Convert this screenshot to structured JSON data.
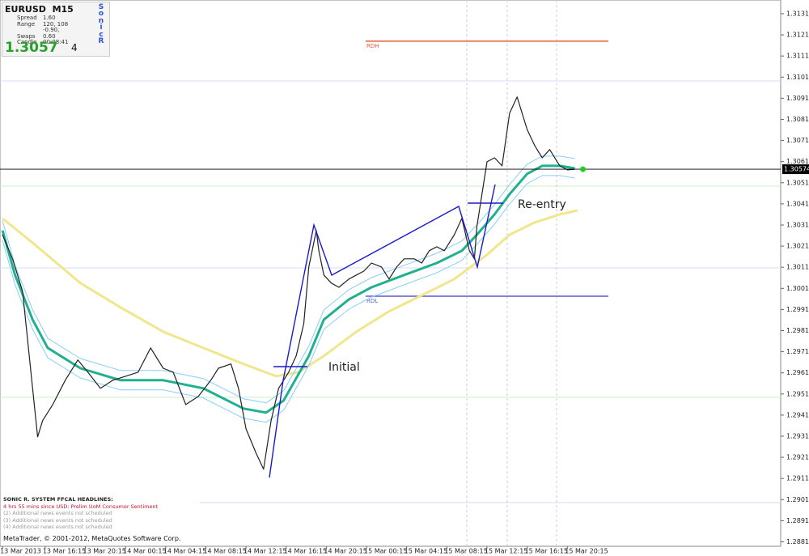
{
  "chart_data": {
    "type": "line",
    "annotations": [
      "Initial",
      "Re-entry"
    ],
    "xlim": [
      -1,
      310
    ],
    "ylim": [
      1.28789,
      1.31375
    ],
    "xticks": [
      {
        "value": 0,
        "label": "13 Mar 2013"
      },
      {
        "value": 17,
        "label": "13 Mar 16:15"
      },
      {
        "value": 33,
        "label": "13 Mar 20:15"
      },
      {
        "value": 49,
        "label": "14 Mar 00:15"
      },
      {
        "value": 65,
        "label": "14 Mar 04:15"
      },
      {
        "value": 81,
        "label": "14 Mar 08:15"
      },
      {
        "value": 97,
        "label": "14 Mar 12:15"
      },
      {
        "value": 113,
        "label": "14 Mar 16:15"
      },
      {
        "value": 129,
        "label": "14 Mar 20:15"
      },
      {
        "value": 145,
        "label": "15 Mar 00:15"
      },
      {
        "value": 161,
        "label": "15 Mar 04:15"
      },
      {
        "value": 177,
        "label": "15 Mar 08:15"
      },
      {
        "value": 193,
        "label": "15 Mar 12:15"
      },
      {
        "value": 209,
        "label": "15 Mar 16:15"
      },
      {
        "value": 225,
        "label": "15 Mar 20:15"
      }
    ],
    "yticks": [
      {
        "value": 1.3131,
        "label": "1.31310"
      },
      {
        "value": 1.3121,
        "label": "1.31210"
      },
      {
        "value": 1.3111,
        "label": "1.31110"
      },
      {
        "value": 1.3101,
        "label": "1.31010"
      },
      {
        "value": 1.3091,
        "label": "1.30910"
      },
      {
        "value": 1.3081,
        "label": "1.30810"
      },
      {
        "value": 1.3071,
        "label": "1.30710"
      },
      {
        "value": 1.3061,
        "label": "1.30610"
      },
      {
        "value": 1.3051,
        "label": "1.30510"
      },
      {
        "value": 1.3041,
        "label": "1.30410"
      },
      {
        "value": 1.3031,
        "label": "1.30310"
      },
      {
        "value": 1.3021,
        "label": "1.30210"
      },
      {
        "value": 1.3011,
        "label": "1.30110"
      },
      {
        "value": 1.3001,
        "label": "1.30010"
      },
      {
        "value": 1.2991,
        "label": "1.29910"
      },
      {
        "value": 1.2981,
        "label": "1.29810"
      },
      {
        "value": 1.2971,
        "label": "1.29710"
      },
      {
        "value": 1.2961,
        "label": "1.29610"
      },
      {
        "value": 1.2951,
        "label": "1.29510"
      },
      {
        "value": 1.2941,
        "label": "1.29410"
      },
      {
        "value": 1.2931,
        "label": "1.29310"
      },
      {
        "value": 1.2921,
        "label": "1.29210"
      },
      {
        "value": 1.2911,
        "label": "1.29110"
      },
      {
        "value": 1.2901,
        "label": "1.29010"
      },
      {
        "value": 1.2891,
        "label": "1.28910"
      },
      {
        "value": 1.2881,
        "label": "1.28810"
      }
    ],
    "bid": 1.30574,
    "bid_color": "#22cc22",
    "levels": [
      {
        "name": "RDH",
        "value": 1.3118,
        "color": "#e8603c"
      },
      {
        "name": "RDL",
        "value": 1.29973,
        "color": "#5a5acd"
      }
    ],
    "series": [
      {
        "color": "#f0e68c",
        "width": 3,
        "x": [
          0,
          12,
          31,
          47,
          64,
          80,
          96,
          109,
          118,
          128,
          141,
          154,
          167,
          180,
          193,
          202,
          212,
          222,
          229
        ],
        "values": [
          1.30341,
          1.30226,
          1.30035,
          1.2992,
          1.29805,
          1.29728,
          1.29652,
          1.29594,
          1.29613,
          1.2969,
          1.29805,
          1.29901,
          1.29977,
          1.30054,
          1.30169,
          1.30264,
          1.30322,
          1.3036,
          1.30379
        ]
      },
      {
        "color": "#87cefa",
        "width": 1,
        "x": [
          0,
          5,
          12,
          18,
          31,
          47,
          64,
          80,
          96,
          105,
          112,
          122,
          128,
          138,
          147,
          160,
          173,
          183,
          189,
          196,
          202,
          209,
          215,
          222,
          228
        ],
        "values": [
          1.3033,
          1.30119,
          1.29908,
          1.29774,
          1.29678,
          1.29621,
          1.29621,
          1.29583,
          1.29487,
          1.29468,
          1.29525,
          1.29736,
          1.29908,
          1.30004,
          1.30061,
          1.30119,
          1.30176,
          1.30234,
          1.3031,
          1.30406,
          1.30502,
          1.30598,
          1.30636,
          1.30636,
          1.30624
        ]
      },
      {
        "color": "#87cefa",
        "width": 1,
        "x": [
          0,
          5,
          12,
          18,
          31,
          47,
          64,
          80,
          96,
          105,
          112,
          122,
          128,
          138,
          147,
          160,
          173,
          183,
          189,
          196,
          202,
          209,
          215,
          222,
          228
        ],
        "values": [
          1.30238,
          1.30027,
          1.29816,
          1.29682,
          1.29586,
          1.29529,
          1.29529,
          1.29491,
          1.29395,
          1.29376,
          1.29433,
          1.29644,
          1.29816,
          1.29912,
          1.29969,
          1.30027,
          1.30084,
          1.30142,
          1.30218,
          1.30314,
          1.3041,
          1.30506,
          1.30544,
          1.30544,
          1.30532
        ]
      },
      {
        "color": "#20b090",
        "width": 3,
        "x": [
          0,
          5,
          12,
          18,
          31,
          47,
          64,
          80,
          96,
          105,
          112,
          122,
          128,
          138,
          147,
          160,
          173,
          183,
          189,
          196,
          202,
          209,
          215,
          222,
          228
        ],
        "values": [
          1.30284,
          1.30073,
          1.29862,
          1.29728,
          1.29632,
          1.29575,
          1.29575,
          1.29537,
          1.29441,
          1.29422,
          1.29479,
          1.2969,
          1.29862,
          1.29958,
          1.30015,
          1.30073,
          1.3013,
          1.30188,
          1.30264,
          1.3036,
          1.30456,
          1.30552,
          1.3059,
          1.3059,
          1.30578
        ]
      },
      {
        "color": "#222222",
        "width": 1.2,
        "x": [
          0,
          4,
          8,
          12,
          14,
          16,
          20,
          25,
          30,
          34,
          39,
          44,
          49,
          54,
          59,
          64,
          68,
          73,
          78,
          83,
          86,
          91,
          94,
          97,
          101,
          104,
          107,
          110,
          114,
          117,
          120,
          122,
          125,
          126,
          128,
          131,
          134,
          138,
          141,
          144,
          147,
          151,
          154,
          157,
          160,
          164,
          167,
          170,
          173,
          176,
          180,
          183,
          186,
          188,
          189,
          193,
          196,
          199,
          202,
          205,
          209,
          212,
          215,
          218,
          222,
          225,
          228
        ],
        "values": [
          1.30264,
          1.3015,
          1.29996,
          1.29537,
          1.29307,
          1.29384,
          1.2946,
          1.29575,
          1.29671,
          1.29613,
          1.29537,
          1.29575,
          1.29594,
          1.29613,
          1.29728,
          1.29632,
          1.29613,
          1.2946,
          1.29498,
          1.29575,
          1.29632,
          1.29652,
          1.29537,
          1.29345,
          1.2923,
          1.29154,
          1.29384,
          1.29537,
          1.29613,
          1.2969,
          1.29843,
          1.30111,
          1.30284,
          1.30188,
          1.30073,
          1.30035,
          1.30015,
          1.30054,
          1.30073,
          1.30092,
          1.3013,
          1.30111,
          1.30054,
          1.30111,
          1.3015,
          1.3015,
          1.3013,
          1.30188,
          1.30207,
          1.30188,
          1.30264,
          1.30341,
          1.30188,
          1.3015,
          1.30303,
          1.30609,
          1.30628,
          1.3059,
          1.30839,
          1.30916,
          1.30762,
          1.30686,
          1.30628,
          1.30667,
          1.3059,
          1.30571,
          1.30574
        ]
      }
    ]
  },
  "info_panel": {
    "symbol": "EURUSD",
    "timeframe": "M15",
    "rows": [
      [
        "Spread",
        "1.60"
      ],
      [
        "Range",
        "120, 108"
      ],
      [
        "Swaps",
        "-0.90, 0.60"
      ],
      [
        "Candle",
        "00:08:41"
      ]
    ],
    "price_big": "1.3057",
    "price_small": "4",
    "logo": [
      "S",
      "o",
      "n",
      "i",
      "c",
      "R"
    ]
  },
  "headlines": {
    "title": "SONIC R. SYSTEM  FFCAL HEADLINES:",
    "event": "4 hrs 55 mins since USD: Prelim UoM Consumer Sentiment",
    "notes": [
      "(2)  Additional news events not scheduled",
      "(3)  Additional news events not scheduled",
      "(4)  Additional news events not scheduled"
    ]
  },
  "copyright": "MetaTrader, © 2001-2012, MetaQuotes Software Corp."
}
